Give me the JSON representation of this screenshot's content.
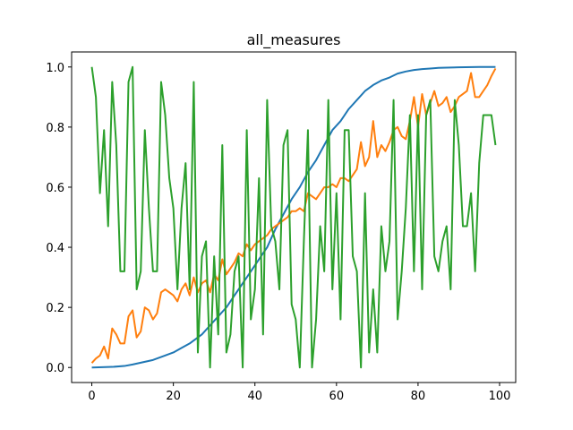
{
  "chart_data": {
    "type": "line",
    "title": "all_measures",
    "xlabel": "",
    "ylabel": "",
    "xlim": [
      -4.95,
      103.95
    ],
    "ylim": [
      -0.05,
      1.05
    ],
    "xticks": [
      0,
      20,
      40,
      60,
      80,
      100
    ],
    "yticks": [
      0.0,
      0.2,
      0.4,
      0.6,
      0.8,
      1.0
    ],
    "xtick_labels": [
      "0",
      "20",
      "40",
      "60",
      "80",
      "100"
    ],
    "ytick_labels": [
      "0.0",
      "0.2",
      "0.4",
      "0.6",
      "0.8",
      "1.0"
    ],
    "grid": false,
    "series": [
      {
        "color": "#1f77b4",
        "x": [
          0,
          5,
          8,
          10,
          12,
          15,
          18,
          20,
          22,
          24,
          25,
          27,
          29,
          31,
          33,
          35,
          37,
          39,
          41,
          43,
          45,
          47,
          49,
          51,
          53,
          55,
          57,
          59,
          61,
          63,
          65,
          67,
          69,
          71,
          73,
          75,
          77,
          79,
          81,
          83,
          85,
          87,
          90,
          95,
          99
        ],
        "y": [
          0.0,
          0.002,
          0.005,
          0.01,
          0.016,
          0.025,
          0.04,
          0.05,
          0.065,
          0.08,
          0.09,
          0.11,
          0.14,
          0.17,
          0.2,
          0.24,
          0.28,
          0.32,
          0.36,
          0.4,
          0.46,
          0.51,
          0.56,
          0.6,
          0.65,
          0.69,
          0.74,
          0.79,
          0.82,
          0.86,
          0.89,
          0.92,
          0.94,
          0.955,
          0.965,
          0.978,
          0.985,
          0.99,
          0.993,
          0.995,
          0.997,
          0.998,
          0.999,
          1.0,
          1.0
        ]
      },
      {
        "color": "#ff7f0e",
        "x": [
          0,
          1,
          2,
          3,
          4,
          5,
          6,
          7,
          8,
          9,
          10,
          11,
          12,
          13,
          14,
          15,
          16,
          17,
          18,
          19,
          20,
          21,
          22,
          23,
          24,
          25,
          26,
          27,
          28,
          29,
          30,
          31,
          32,
          33,
          34,
          35,
          36,
          37,
          38,
          39,
          40,
          41,
          42,
          43,
          44,
          45,
          46,
          47,
          48,
          49,
          50,
          51,
          52,
          53,
          54,
          55,
          56,
          57,
          58,
          59,
          60,
          61,
          62,
          63,
          64,
          65,
          66,
          67,
          68,
          69,
          70,
          71,
          72,
          73,
          74,
          75,
          76,
          77,
          78,
          79,
          80,
          81,
          82,
          83,
          84,
          85,
          86,
          87,
          88,
          89,
          90,
          91,
          92,
          93,
          94,
          95,
          96,
          97,
          98,
          99
        ],
        "y": [
          0.015,
          0.03,
          0.04,
          0.07,
          0.03,
          0.13,
          0.11,
          0.08,
          0.08,
          0.17,
          0.19,
          0.1,
          0.12,
          0.2,
          0.19,
          0.16,
          0.18,
          0.25,
          0.26,
          0.25,
          0.24,
          0.22,
          0.26,
          0.28,
          0.24,
          0.3,
          0.25,
          0.28,
          0.29,
          0.25,
          0.31,
          0.29,
          0.36,
          0.31,
          0.33,
          0.35,
          0.38,
          0.37,
          0.41,
          0.39,
          0.41,
          0.42,
          0.43,
          0.44,
          0.46,
          0.47,
          0.48,
          0.49,
          0.5,
          0.52,
          0.52,
          0.53,
          0.52,
          0.58,
          0.57,
          0.56,
          0.58,
          0.6,
          0.6,
          0.61,
          0.6,
          0.63,
          0.63,
          0.62,
          0.64,
          0.66,
          0.75,
          0.67,
          0.7,
          0.82,
          0.7,
          0.74,
          0.72,
          0.75,
          0.79,
          0.8,
          0.77,
          0.76,
          0.82,
          0.9,
          0.8,
          0.91,
          0.84,
          0.88,
          0.92,
          0.87,
          0.88,
          0.9,
          0.85,
          0.87,
          0.9,
          0.91,
          0.92,
          0.98,
          0.9,
          0.9,
          0.92,
          0.94,
          0.97,
          0.995
        ]
      },
      {
        "color": "#2ca02c",
        "x": [
          0,
          1,
          2,
          3,
          4,
          5,
          6,
          7,
          8,
          9,
          10,
          11,
          12,
          13,
          14,
          15,
          16,
          17,
          18,
          19,
          20,
          21,
          22,
          23,
          24,
          25,
          26,
          27,
          28,
          29,
          30,
          31,
          32,
          33,
          34,
          35,
          36,
          37,
          38,
          39,
          40,
          41,
          42,
          43,
          44,
          45,
          46,
          47,
          48,
          49,
          50,
          51,
          52,
          53,
          54,
          55,
          56,
          57,
          58,
          59,
          60,
          61,
          62,
          63,
          64,
          65,
          66,
          67,
          68,
          69,
          70,
          71,
          72,
          73,
          74,
          75,
          76,
          77,
          78,
          79,
          80,
          81,
          82,
          83,
          84,
          85,
          86,
          87,
          88,
          89,
          90,
          91,
          92,
          93,
          94,
          95,
          96,
          97,
          98,
          99
        ],
        "y": [
          1.0,
          0.9,
          0.58,
          0.79,
          0.47,
          0.95,
          0.74,
          0.32,
          0.32,
          0.95,
          1.0,
          0.26,
          0.32,
          0.79,
          0.53,
          0.32,
          0.32,
          0.95,
          0.84,
          0.63,
          0.53,
          0.26,
          0.53,
          0.68,
          0.26,
          0.95,
          0.05,
          0.37,
          0.42,
          0.0,
          0.37,
          0.11,
          0.74,
          0.05,
          0.11,
          0.32,
          0.37,
          0.0,
          0.79,
          0.16,
          0.26,
          0.63,
          0.11,
          0.89,
          0.47,
          0.42,
          0.26,
          0.74,
          0.79,
          0.21,
          0.16,
          0.0,
          0.42,
          0.79,
          0.0,
          0.16,
          0.47,
          0.32,
          0.89,
          0.26,
          0.58,
          0.16,
          0.79,
          0.79,
          0.37,
          0.32,
          0.0,
          0.58,
          0.05,
          0.26,
          0.05,
          0.47,
          0.32,
          0.42,
          0.89,
          0.16,
          0.32,
          0.53,
          0.84,
          0.32,
          0.84,
          0.26,
          0.84,
          0.89,
          0.37,
          0.32,
          0.42,
          0.47,
          0.26,
          0.89,
          0.74,
          0.47,
          0.47,
          0.58,
          0.32,
          0.68,
          0.84,
          0.84,
          0.84,
          0.74
        ]
      }
    ]
  }
}
